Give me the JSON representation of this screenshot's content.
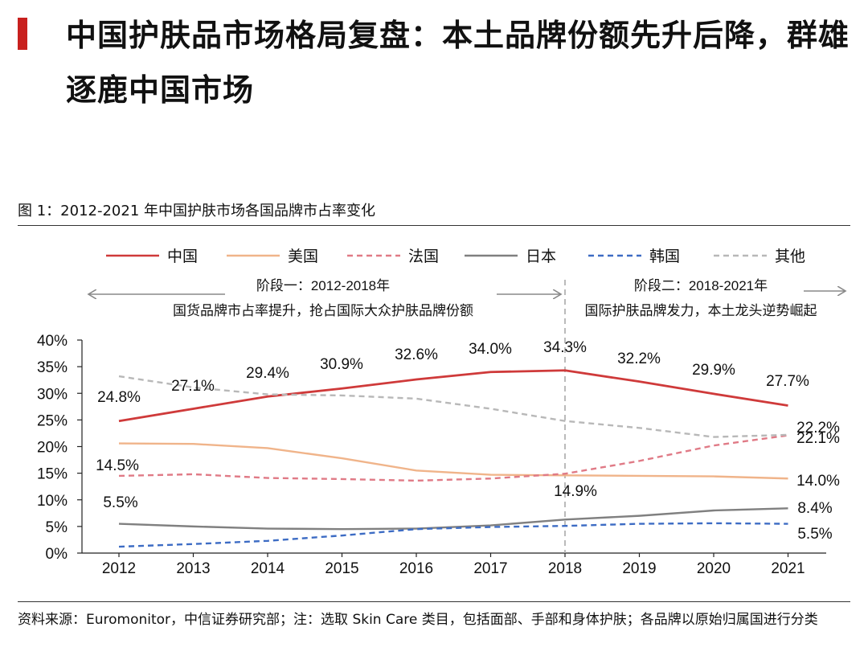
{
  "header": {
    "title": "中国护肤品市场格局复盘：本土品牌份额先升后降，群雄逐鹿中国市场"
  },
  "figure": {
    "caption": "图 1：2012-2021 年中国护肤市场各国品牌市占率变化"
  },
  "footer": {
    "source": "资料来源：Euromonitor，中信证券研究部；注：选取 Skin Care 类目，包括面部、手部和身体护肤；各品牌以原始归属国进行分类"
  },
  "colors": {
    "accent": "#c8201e",
    "china": "#cf3a3a",
    "usa": "#f0b48a",
    "france": "#e07a86",
    "japan": "#808080",
    "korea": "#3d6cc4",
    "other": "#b8b8b8"
  },
  "chart_data": {
    "type": "line",
    "x": [
      "2012",
      "2013",
      "2014",
      "2015",
      "2016",
      "2017",
      "2018",
      "2019",
      "2020",
      "2021"
    ],
    "ylim": [
      0,
      40
    ],
    "yticks": [
      "0%",
      "5%",
      "10%",
      "15%",
      "20%",
      "25%",
      "30%",
      "35%",
      "40%"
    ],
    "legend_position": "top",
    "series": [
      {
        "name": "中国",
        "style": "solid",
        "values": [
          24.8,
          27.1,
          29.4,
          30.9,
          32.6,
          34.0,
          34.3,
          32.2,
          29.9,
          27.7
        ]
      },
      {
        "name": "美国",
        "style": "solid",
        "values": [
          20.6,
          20.5,
          19.7,
          17.8,
          15.5,
          14.7,
          14.6,
          14.5,
          14.4,
          14.0
        ]
      },
      {
        "name": "法国",
        "style": "dashed",
        "values": [
          14.5,
          14.8,
          14.1,
          13.9,
          13.6,
          14.0,
          14.9,
          17.3,
          20.2,
          22.1
        ]
      },
      {
        "name": "日本",
        "style": "solid",
        "values": [
          5.5,
          5.0,
          4.6,
          4.5,
          4.6,
          5.2,
          6.3,
          7.0,
          8.0,
          8.4
        ]
      },
      {
        "name": "韩国",
        "style": "dashed",
        "values": [
          1.2,
          1.7,
          2.3,
          3.3,
          4.5,
          4.9,
          5.1,
          5.5,
          5.6,
          5.5
        ]
      },
      {
        "name": "其他",
        "style": "dashed",
        "values": [
          33.2,
          31.1,
          29.8,
          29.6,
          29.0,
          27.1,
          24.8,
          23.5,
          21.8,
          22.2
        ]
      }
    ],
    "data_labels": [
      {
        "text": "24.8%"
      },
      {
        "text": "27.1%"
      },
      {
        "text": "29.4%"
      },
      {
        "text": "30.9%"
      },
      {
        "text": "32.6%"
      },
      {
        "text": "34.0%"
      },
      {
        "text": "34.3%"
      },
      {
        "text": "32.2%"
      },
      {
        "text": "29.9%"
      },
      {
        "text": "27.7%"
      },
      {
        "text": "14.5%"
      },
      {
        "text": "14.9%"
      },
      {
        "text": "5.5%"
      },
      {
        "text": "22.2%"
      },
      {
        "text": "22.1%"
      },
      {
        "text": "14.0%"
      },
      {
        "text": "8.4%"
      },
      {
        "text": "5.5%"
      }
    ],
    "phases": [
      {
        "title": "阶段一：2012-2018年",
        "desc": "国货品牌市占率提升，抢占国际大众护肤品牌份额"
      },
      {
        "title": "阶段二：2018-2021年",
        "desc": "国际护肤品牌发力，本土龙头逆势崛起"
      }
    ],
    "divider_at": "2018"
  }
}
